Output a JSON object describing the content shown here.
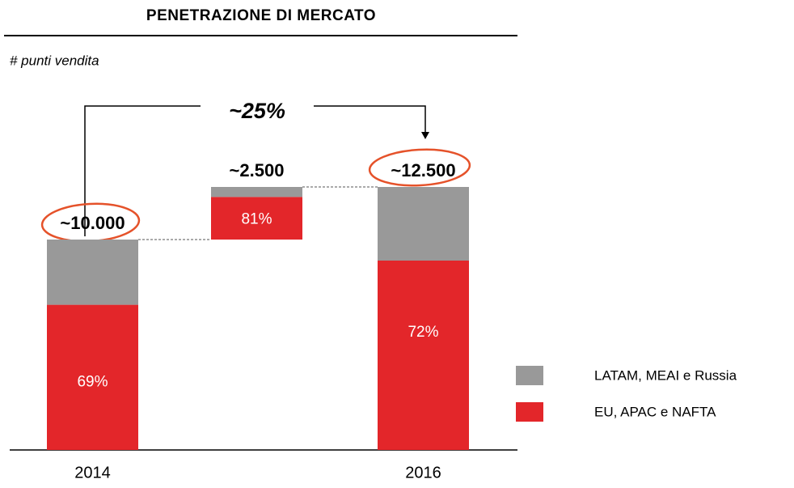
{
  "chart_data": {
    "type": "waterfall",
    "title": "PENETRAZIONE DI MERCATO",
    "subtitle": "# punti vendita",
    "annotation": "~25%",
    "categories": [
      "2014",
      null,
      "2016"
    ],
    "totals": [
      10000,
      2500,
      12500
    ],
    "totals_labels": [
      "~10.000",
      "~2.500",
      "~12.500"
    ],
    "series": [
      {
        "name": "EU, APAC e NAFTA",
        "color": "#e3262a",
        "values": [
          69,
          81,
          72
        ],
        "value_labels": [
          "69%",
          "81%",
          "72%"
        ]
      },
      {
        "name": "LATAM, MEAI e Russia",
        "color": "#999999",
        "values": [
          31,
          19,
          28
        ]
      }
    ]
  }
}
